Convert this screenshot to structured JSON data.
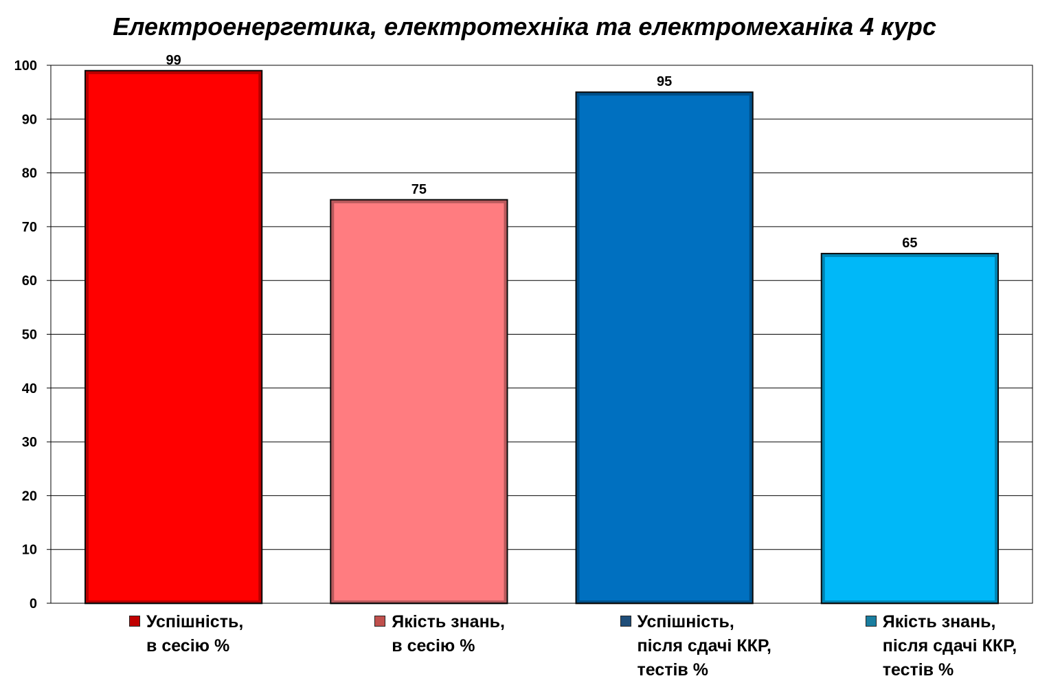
{
  "chart_data": {
    "type": "bar",
    "title": "Електроенергетика, електротехніка та електромеханіка 4 курс",
    "ylim": [
      0,
      100
    ],
    "yticks": [
      0,
      10,
      20,
      30,
      40,
      50,
      60,
      70,
      80,
      90,
      100
    ],
    "grid": true,
    "legend_position": "bottom",
    "series": [
      {
        "name": "Успішність,\nв сесію %",
        "value": 99,
        "color": "#ff0000"
      },
      {
        "name": "Якість знань,\nв сесію %",
        "value": 75,
        "color": "#ff7c80"
      },
      {
        "name": "Успішність,\nпісля сдачі ККР,\nтестів %",
        "value": 95,
        "color": "#0070c0"
      },
      {
        "name": "Якість знань,\nпісля сдачі ККР,\nтестів %",
        "value": 65,
        "color": "#00b8f8"
      }
    ]
  },
  "legend_swatch_colors": [
    "#c00000",
    "#c0504d",
    "#1f4e79",
    "#1a7ea0"
  ]
}
